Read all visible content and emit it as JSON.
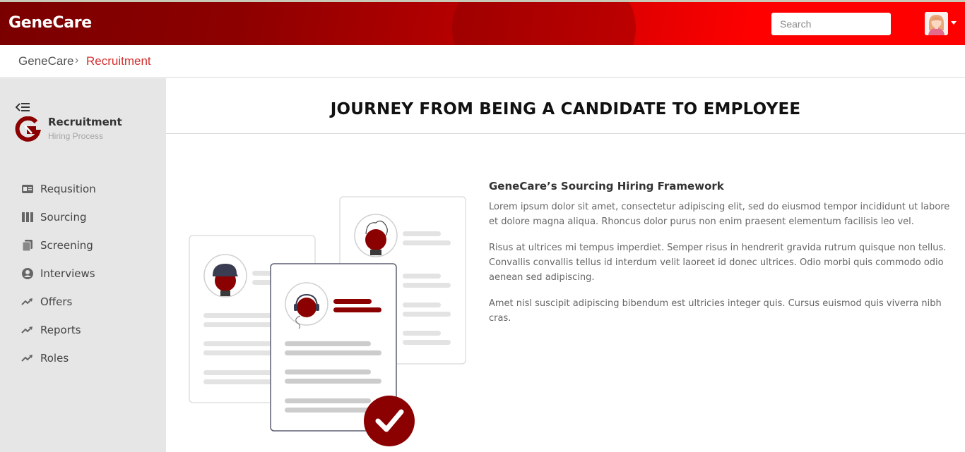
{
  "header": {
    "brand": "GeneCare",
    "search_placeholder": "Search",
    "avatar_icon": "user-avatar-icon"
  },
  "breadcrumb": {
    "root": "GeneCare",
    "separator": "›",
    "current": "Recruitment"
  },
  "sidebar": {
    "title": "Recruitment",
    "subtitle": "Hiring Process",
    "items": [
      {
        "label": "Requsition",
        "icon": "id-card-icon"
      },
      {
        "label": "Sourcing",
        "icon": "columns-icon"
      },
      {
        "label": "Screening",
        "icon": "copy-icon"
      },
      {
        "label": "Interviews",
        "icon": "user-circle-icon"
      },
      {
        "label": "Offers",
        "icon": "trend-up-icon"
      },
      {
        "label": "Reports",
        "icon": "trend-up-icon"
      },
      {
        "label": "Roles",
        "icon": "trend-up-icon"
      }
    ]
  },
  "main": {
    "title": "JOURNEY FROM BEING A CANDIDATE TO EMPLOYEE",
    "heading": "GeneCare’s Sourcing Hiring Framework",
    "paragraphs": [
      "Lorem ipsum dolor sit amet, consectetur adipiscing elit, sed do eiusmod tempor incididunt ut labore et dolore magna aliqua. Rhoncus dolor purus non enim praesent elementum facilisis leo vel.",
      "Risus at ultrices mi tempus imperdiet. Semper risus in hendrerit gravida rutrum quisque non tellus. Convallis convallis tellus id interdum velit laoreet id donec ultrices. Odio morbi quis commodo odio aenean sed adipiscing.",
      "Amet nisl suscipit adipiscing bibendum est ultricies integer quis. Cursus euismod quis viverra nibh cras."
    ]
  },
  "colors": {
    "brand_dark": "#7a0000",
    "brand_red": "#ff0000",
    "accent_text": "#d32f2f",
    "illustration_red": "#8b0000"
  }
}
